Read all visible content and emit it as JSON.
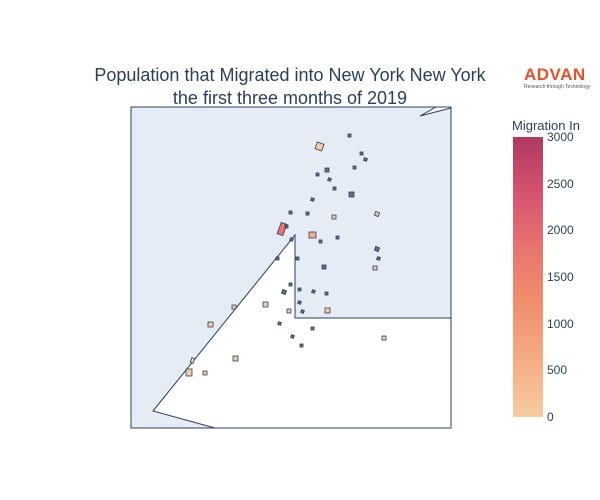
{
  "title": {
    "line1": "Population that Migrated into New York New York",
    "line2": "the first three months of 2019"
  },
  "logo": {
    "word": "ADVAN",
    "tagline": "Research through Technology"
  },
  "colorbar": {
    "title": "Migration In",
    "ticks": [
      "3000",
      "2500",
      "2000",
      "1500",
      "1000",
      "500",
      "0"
    ],
    "tick_values": [
      3000,
      2500,
      2000,
      1500,
      1000,
      500,
      0
    ],
    "min": 0,
    "max": 3000,
    "colors": [
      "#b0395f",
      "#d5536f",
      "#e8756f",
      "#f0906c",
      "#f5ad82",
      "#f6cca0"
    ]
  },
  "map": {
    "background_color": "#e5ecf6",
    "land_color": "#ffffff",
    "outline_color": "#2a3f5f"
  }
}
